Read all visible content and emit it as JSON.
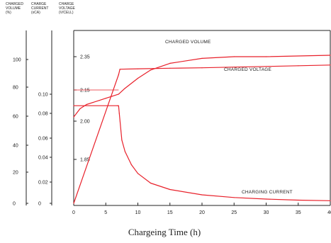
{
  "chart_data": {
    "type": "line",
    "xlabel": "Chargeing Time (h)",
    "xlim": [
      0,
      40
    ],
    "x_ticks": [
      0,
      5,
      10,
      15,
      20,
      25,
      30,
      35,
      40
    ],
    "axes": [
      {
        "key": "volume",
        "header": [
          "CHARGED",
          "VOLUME",
          "(%)"
        ],
        "ticks": [
          "100",
          "80",
          "60",
          "40",
          "20",
          "0"
        ],
        "range": [
          0,
          120
        ]
      },
      {
        "key": "current",
        "header": [
          "CHARGE",
          "CURRENT",
          "(xCA)"
        ],
        "ticks": [
          "0.10",
          "0.08",
          "0.06",
          "0.04",
          "0.02",
          "0"
        ],
        "range": [
          0,
          0.14
        ]
      },
      {
        "key": "voltage",
        "header": [
          "CHARGE",
          "VOLTAGE",
          "(V/CELL)"
        ],
        "ticks": [
          "2.35",
          "2.15",
          "2.00",
          "1.85"
        ],
        "range": [
          1.55,
          2.5
        ]
      }
    ],
    "series": [
      {
        "name": "CHARGED VOLUME",
        "axis": "volume",
        "color": "#e8202a",
        "x": [
          0,
          7,
          7.2,
          10,
          15,
          20,
          25,
          30,
          35,
          40
        ],
        "y": [
          0,
          89,
          93,
          93.3,
          93.7,
          94,
          94.5,
          95,
          95.5,
          96
        ]
      },
      {
        "name": "CHARGED VOLTAGE",
        "axis": "voltage",
        "color": "#e8202a",
        "x": [
          0,
          1,
          2,
          3,
          4,
          5,
          6,
          7,
          8,
          10,
          12,
          15,
          20,
          25,
          30,
          40
        ],
        "y": [
          2.02,
          2.06,
          2.08,
          2.09,
          2.1,
          2.11,
          2.12,
          2.13,
          2.16,
          2.22,
          2.27,
          2.31,
          2.34,
          2.35,
          2.35,
          2.36
        ]
      },
      {
        "name": "CHARGING CURRENT",
        "axis": "current",
        "color": "#e8202a",
        "x": [
          0,
          6.8,
          7,
          7.1,
          7.5,
          8,
          9,
          10,
          12,
          15,
          20,
          25,
          30,
          35,
          40
        ],
        "y": [
          0.088,
          0.088,
          0.088,
          0.08,
          0.058,
          0.046,
          0.034,
          0.027,
          0.019,
          0.013,
          0.008,
          0.0055,
          0.004,
          0.003,
          0.0025
        ]
      }
    ],
    "annotations": [
      "CHARGED VOLUME",
      "CHARGED VOLTAGE",
      "CHARGING CURRENT"
    ]
  }
}
